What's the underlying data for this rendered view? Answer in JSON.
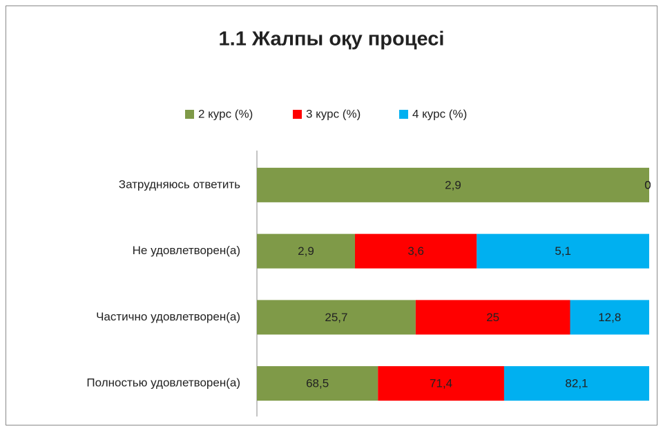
{
  "chart_data": {
    "type": "bar",
    "orientation": "horizontal",
    "stacking": "percent",
    "title": "1.1 Жалпы оқу процесі",
    "categories": [
      "Затрудняюсь ответить",
      "Не удовлетворен(а)",
      "Частично удовлетворен(а)",
      "Полностью удовлетворен(а)"
    ],
    "legend": "top",
    "series": [
      {
        "name": "2 курс (%)",
        "color": "#7f9a48",
        "values": [
          2.9,
          2.9,
          25.7,
          68.5
        ],
        "value_labels": [
          "2,9",
          "2,9",
          "25,7",
          "68,5"
        ]
      },
      {
        "name": "3 курс (%)",
        "color": "#ff0000",
        "values": [
          0,
          3.6,
          25,
          71.4
        ],
        "value_labels": [
          "0",
          "3,6",
          "25",
          "71,4"
        ]
      },
      {
        "name": "4 курс (%)",
        "color": "#00b0f0",
        "values": [
          0,
          5.1,
          12.8,
          82.1
        ],
        "value_labels": [
          "0",
          "5,1",
          "12,8",
          "82,1"
        ]
      }
    ]
  }
}
